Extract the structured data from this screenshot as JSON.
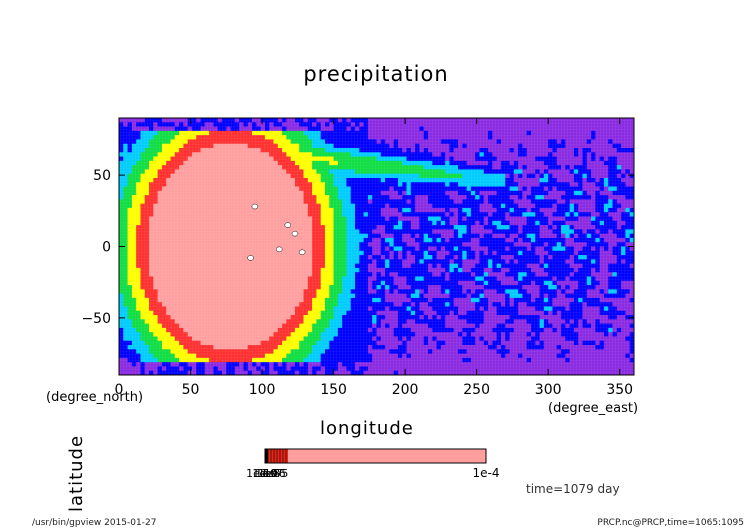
{
  "chart_data": {
    "type": "heatmap",
    "title": "precipitation",
    "xlabel": "longitude",
    "ylabel": "latitude",
    "x_unit": "(degree_east)",
    "y_unit": "(degree_north)",
    "xlim": [
      0,
      360
    ],
    "ylim": [
      -90,
      90
    ],
    "x_ticks": [
      0,
      50,
      100,
      150,
      200,
      250,
      300,
      350
    ],
    "y_ticks": [
      -50,
      0,
      50
    ],
    "x_tick_labels": [
      "0",
      "50",
      "100",
      "150",
      "200",
      "250",
      "300",
      "350"
    ],
    "y_tick_labels": [
      "−50",
      "0",
      "50"
    ],
    "features": [
      {
        "kind": "precipitation maximum",
        "center_lon": 78,
        "center_lat": 0,
        "radius_lon": 58,
        "radius_lat": 72,
        "peak_level": "1e-4"
      }
    ],
    "colorbar": {
      "min_label": "1e-10",
      "max_label": "1e-4",
      "overlapping_labels": [
        "1e-10",
        "1e-9",
        "1e-8",
        "1e-7",
        "1e-6",
        "1e-5"
      ],
      "colors": [
        "#000000",
        "#e8261a",
        "#ff9e9e"
      ]
    },
    "contour_colors": [
      "#8a2be2",
      "#0000ff",
      "#00ccff",
      "#11dd44",
      "#ffff00",
      "#ff3030",
      "#ff9f9f",
      "#ffffff"
    ],
    "time_label": "time=1079 day"
  },
  "footer": {
    "left": "/usr/bin/gpview  2015-01-27",
    "right": "PRCP.nc@PRCP,time=1065:1095"
  }
}
